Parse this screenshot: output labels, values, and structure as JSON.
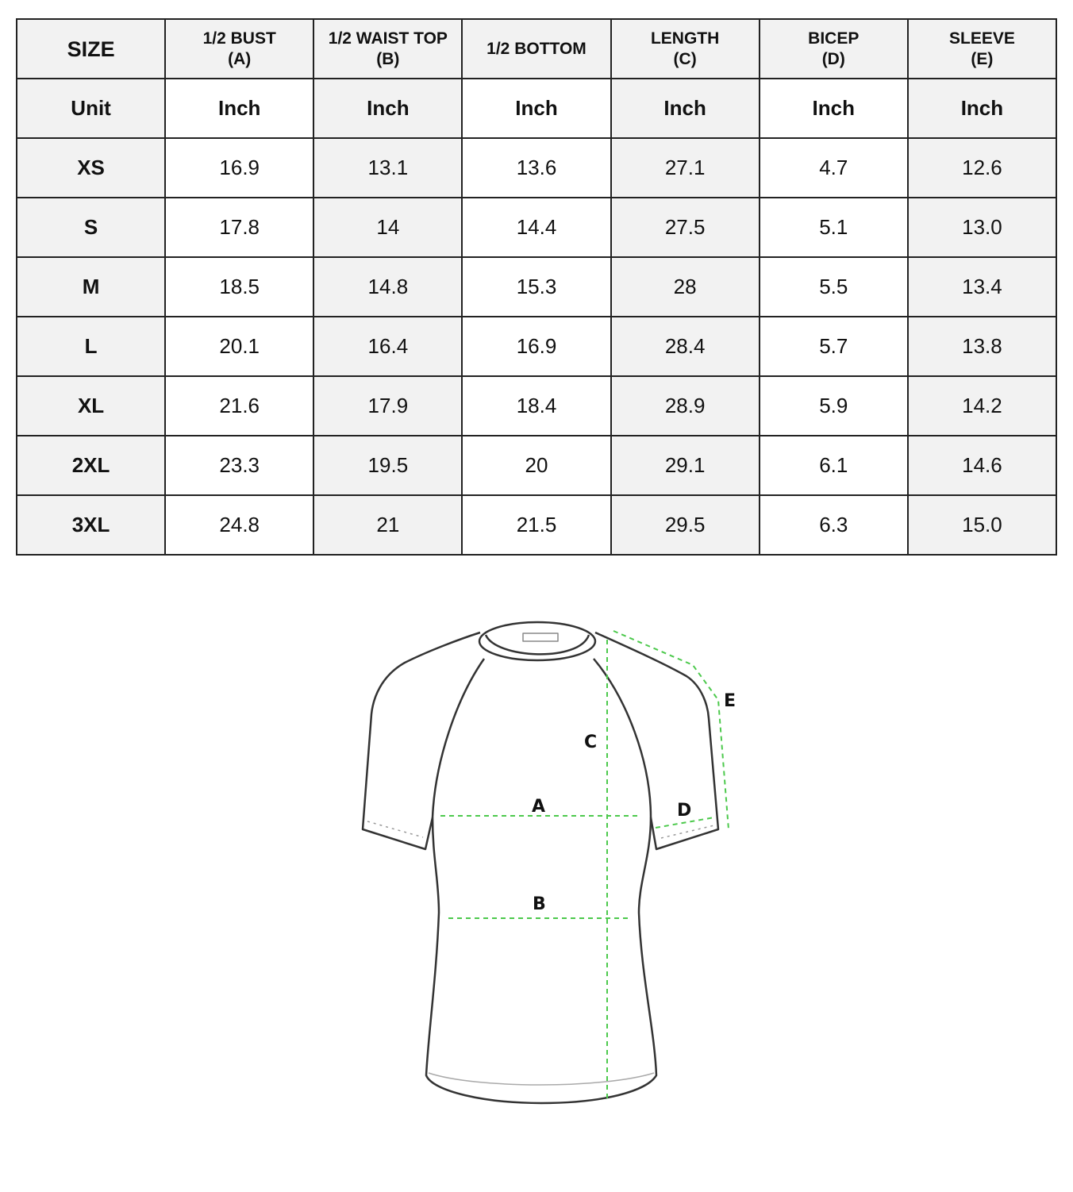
{
  "table": {
    "headers": [
      {
        "line1": "SIZE",
        "line2": ""
      },
      {
        "line1": "1/2 BUST",
        "line2": "(A)"
      },
      {
        "line1": "1/2 WAIST TOP",
        "line2": "(B)"
      },
      {
        "line1": "1/2 BOTTOM",
        "line2": ""
      },
      {
        "line1": "LENGTH",
        "line2": "(C)"
      },
      {
        "line1": "BICEP",
        "line2": "(D)"
      },
      {
        "line1": "SLEEVE",
        "line2": "(E)"
      }
    ],
    "unit_row": [
      "Unit",
      "Inch",
      "Inch",
      "Inch",
      "Inch",
      "Inch",
      "Inch"
    ],
    "rows": [
      [
        "XS",
        "16.9",
        "13.1",
        "13.6",
        "27.1",
        "4.7",
        "12.6"
      ],
      [
        "S",
        "17.8",
        "14",
        "14.4",
        "27.5",
        "5.1",
        "13.0"
      ],
      [
        "M",
        "18.5",
        "14.8",
        "15.3",
        "28",
        "5.5",
        "13.4"
      ],
      [
        "L",
        "20.1",
        "16.4",
        "16.9",
        "28.4",
        "5.7",
        "13.8"
      ],
      [
        "XL",
        "21.6",
        "17.9",
        "18.4",
        "28.9",
        "5.9",
        "14.2"
      ],
      [
        "2XL",
        "23.3",
        "19.5",
        "20",
        "29.1",
        "6.1",
        "14.6"
      ],
      [
        "3XL",
        "24.8",
        "21",
        "21.5",
        "29.5",
        "6.3",
        "15.0"
      ]
    ]
  },
  "diagram": {
    "labels": {
      "a": "A",
      "b": "B",
      "c": "C",
      "d": "D",
      "e": "E"
    },
    "measure_color": "#4cc94c"
  }
}
